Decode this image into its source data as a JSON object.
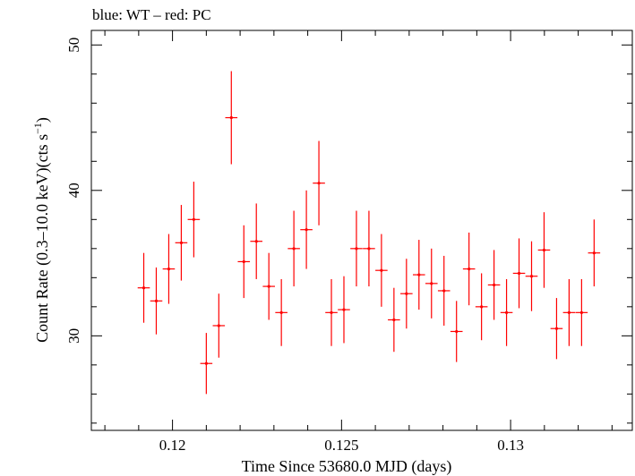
{
  "chart_data": {
    "type": "scatter",
    "title": "blue: WT – red: PC",
    "xlabel": "Time Since 53680.0 MJD (days)",
    "ylabel_main": "Count Rate (0.3–10.0 keV)(cts s",
    "ylabel_sup": "−1",
    "ylabel_end": ")",
    "xlim": [
      0.1176,
      0.1336
    ],
    "ylim": [
      23.5,
      51
    ],
    "xticks": [
      0.12,
      0.125,
      0.13
    ],
    "xtick_labels": [
      "0.12",
      "0.125",
      "0.13"
    ],
    "yticks": [
      30,
      40,
      50
    ],
    "ytick_labels": [
      "30",
      "40",
      "50"
    ],
    "grid": false,
    "series": [
      {
        "color": "#ff0000",
        "x_err": 0.00018,
        "points": [
          {
            "x": 0.11915,
            "y": 33.3,
            "yerr": 2.4
          },
          {
            "x": 0.11952,
            "y": 32.4,
            "yerr": 2.3
          },
          {
            "x": 0.11989,
            "y": 34.6,
            "yerr": 2.4
          },
          {
            "x": 0.12026,
            "y": 36.4,
            "yerr": 2.6
          },
          {
            "x": 0.12063,
            "y": 38.0,
            "yerr": 2.6
          },
          {
            "x": 0.121,
            "y": 28.1,
            "yerr": 2.1
          },
          {
            "x": 0.12137,
            "y": 30.7,
            "yerr": 2.2
          },
          {
            "x": 0.12174,
            "y": 45.0,
            "yerr": 3.2
          },
          {
            "x": 0.12211,
            "y": 35.1,
            "yerr": 2.5
          },
          {
            "x": 0.12248,
            "y": 36.5,
            "yerr": 2.6
          },
          {
            "x": 0.12285,
            "y": 33.4,
            "yerr": 2.3
          },
          {
            "x": 0.12322,
            "y": 31.6,
            "yerr": 2.3
          },
          {
            "x": 0.12359,
            "y": 36.0,
            "yerr": 2.6
          },
          {
            "x": 0.12396,
            "y": 37.3,
            "yerr": 2.7
          },
          {
            "x": 0.12433,
            "y": 40.5,
            "yerr": 2.9
          },
          {
            "x": 0.1247,
            "y": 31.6,
            "yerr": 2.3
          },
          {
            "x": 0.12507,
            "y": 31.8,
            "yerr": 2.3
          },
          {
            "x": 0.12544,
            "y": 36.0,
            "yerr": 2.6
          },
          {
            "x": 0.12581,
            "y": 36.0,
            "yerr": 2.6
          },
          {
            "x": 0.12618,
            "y": 34.5,
            "yerr": 2.5
          },
          {
            "x": 0.12655,
            "y": 31.1,
            "yerr": 2.2
          },
          {
            "x": 0.12692,
            "y": 32.9,
            "yerr": 2.4
          },
          {
            "x": 0.12729,
            "y": 34.2,
            "yerr": 2.4
          },
          {
            "x": 0.12766,
            "y": 33.6,
            "yerr": 2.4
          },
          {
            "x": 0.12803,
            "y": 33.1,
            "yerr": 2.4
          },
          {
            "x": 0.1284,
            "y": 30.3,
            "yerr": 2.1
          },
          {
            "x": 0.12877,
            "y": 34.6,
            "yerr": 2.5
          },
          {
            "x": 0.12914,
            "y": 32.0,
            "yerr": 2.3
          },
          {
            "x": 0.12951,
            "y": 33.5,
            "yerr": 2.4
          },
          {
            "x": 0.12988,
            "y": 31.6,
            "yerr": 2.3
          },
          {
            "x": 0.13025,
            "y": 34.3,
            "yerr": 2.4
          },
          {
            "x": 0.13062,
            "y": 34.1,
            "yerr": 2.4
          },
          {
            "x": 0.13099,
            "y": 35.9,
            "yerr": 2.6
          },
          {
            "x": 0.13136,
            "y": 30.5,
            "yerr": 2.1
          },
          {
            "x": 0.13173,
            "y": 31.6,
            "yerr": 2.3
          },
          {
            "x": 0.1321,
            "y": 31.6,
            "yerr": 2.3
          },
          {
            "x": 0.13247,
            "y": 35.7,
            "yerr": 2.3
          }
        ]
      }
    ]
  }
}
